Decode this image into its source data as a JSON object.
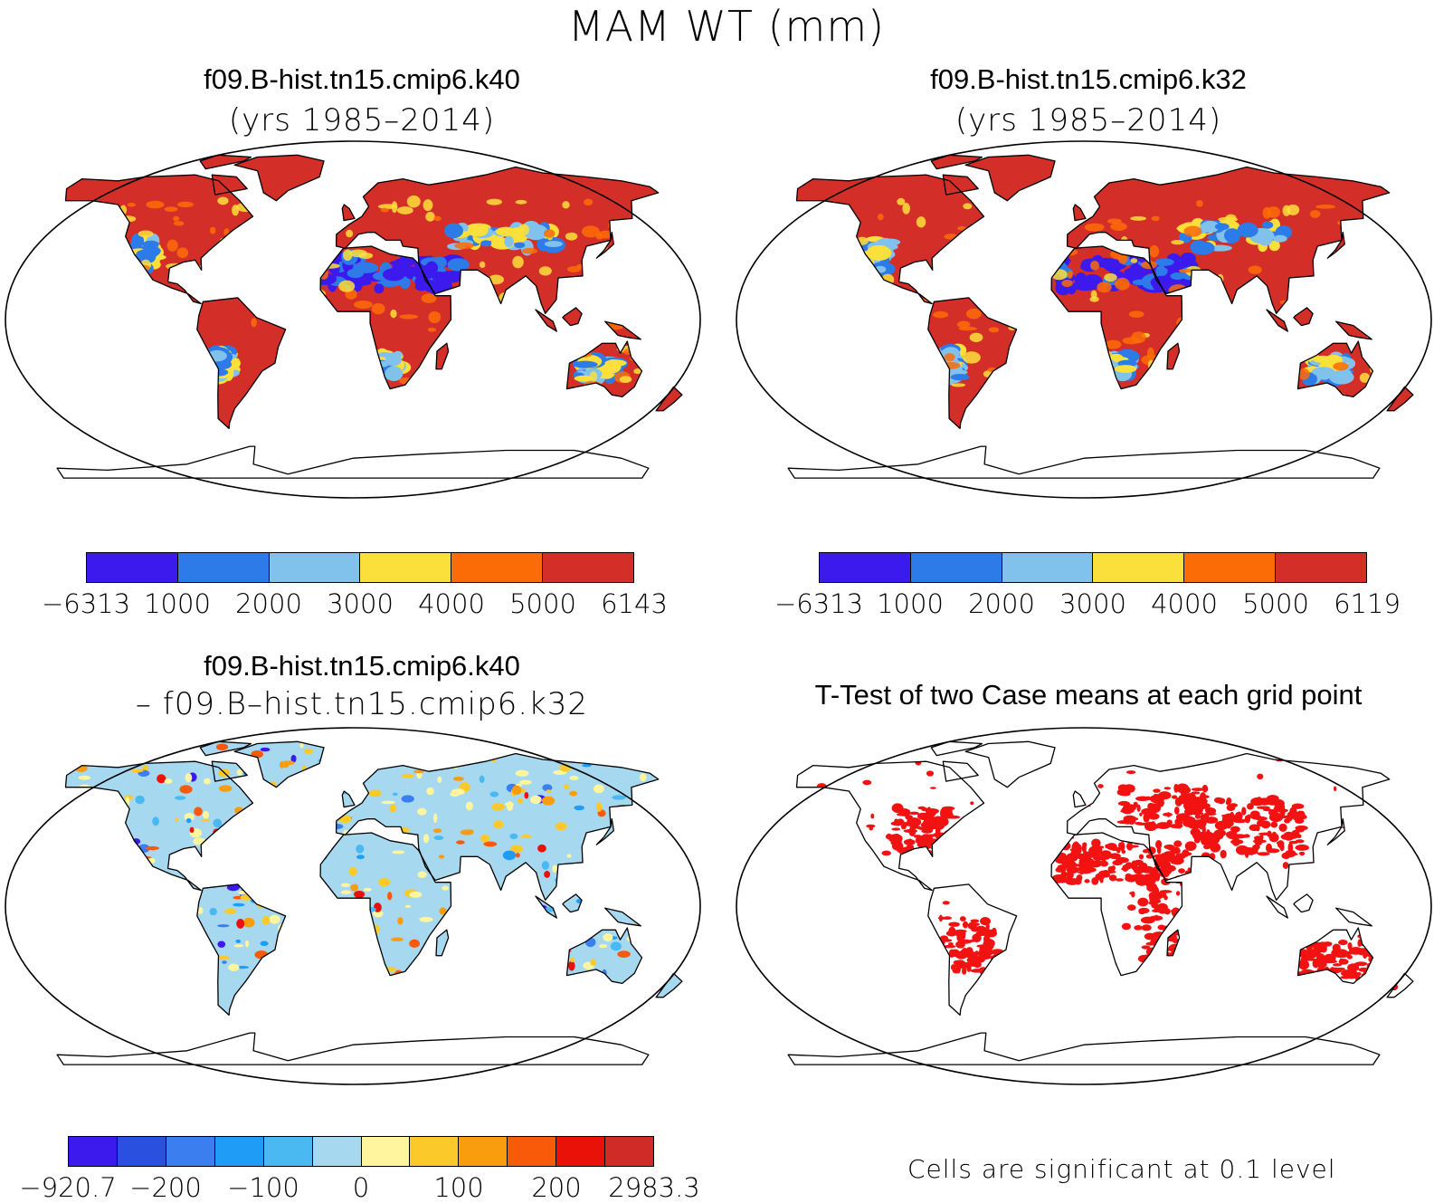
{
  "title": "MAM WT (mm)",
  "panels": {
    "a": {
      "title": "f09.B-hist.tn15.cmip6.k40",
      "subtitle": "(yrs 1985–2014)"
    },
    "b": {
      "title": "f09.B-hist.tn15.cmip6.k32",
      "subtitle": "(yrs 1985–2014)"
    },
    "c": {
      "title": "f09.B-hist.tn15.cmip6.k40",
      "subtitle": "– f09.B–hist.tn15.cmip6.k32"
    },
    "d": {
      "title": "T-Test of two Case means at each grid point",
      "note": "Cells are significant at 0.1 level"
    }
  },
  "colorbars": {
    "a": {
      "colors": [
        "#3c1aee",
        "#2d7be8",
        "#80c2ec",
        "#fbdf3b",
        "#fb6c07",
        "#d42e28"
      ],
      "labels": [
        "−6313",
        "1000",
        "2000",
        "3000",
        "4000",
        "5000",
        "6143"
      ]
    },
    "b": {
      "colors": [
        "#3c1aee",
        "#2d7be8",
        "#80c2ec",
        "#fbdf3b",
        "#fb6c07",
        "#d42e28"
      ],
      "labels": [
        "−6313",
        "1000",
        "2000",
        "3000",
        "4000",
        "5000",
        "6119"
      ]
    },
    "c": {
      "colors": [
        "#3c1aee",
        "#2a50e0",
        "#3a7ef0",
        "#1e9cf6",
        "#4ab9f2",
        "#a6d8f0",
        "#fff59e",
        "#fbc92a",
        "#f99c0e",
        "#f95a0a",
        "#ea1108",
        "#cf2b27"
      ],
      "labels": [
        "−920.7",
        "−200",
        "−100",
        "0",
        "100",
        "200",
        "2983.3"
      ]
    }
  },
  "map_colors": {
    "ocean": "#ffffff",
    "significant": "#f21212",
    "coast": "#000000"
  }
}
